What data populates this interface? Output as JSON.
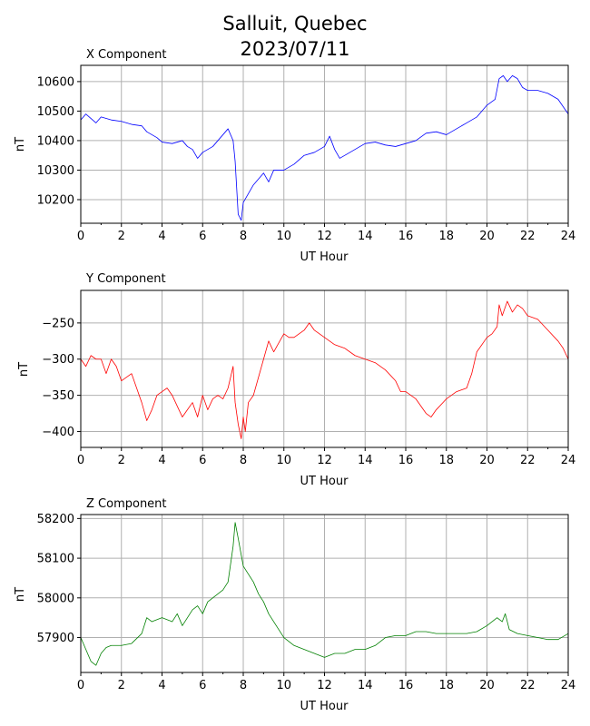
{
  "figure": {
    "title_line1": "Salluit, Quebec",
    "title_line2": "2023/07/11"
  },
  "chart_data": [
    {
      "type": "line",
      "title": "X Component",
      "xlabel": "UT Hour",
      "ylabel": "nT",
      "xlim": [
        0,
        24
      ],
      "ylim": [
        10120,
        10655
      ],
      "xticks": [
        0,
        2,
        4,
        6,
        8,
        10,
        12,
        14,
        16,
        18,
        20,
        22,
        24
      ],
      "yticks": [
        10200,
        10300,
        10400,
        10500,
        10600
      ],
      "ytick_labels": [
        "10200",
        "10300",
        "10400",
        "10500",
        "10600"
      ],
      "grid": true,
      "color": "#0000ff",
      "x": [
        0,
        0.25,
        0.5,
        0.75,
        1,
        1.5,
        2,
        2.5,
        3,
        3.25,
        3.5,
        3.75,
        4,
        4.5,
        5,
        5.25,
        5.5,
        5.75,
        6,
        6.5,
        7,
        7.25,
        7.5,
        7.6,
        7.75,
        7.9,
        8,
        8.25,
        8.5,
        9,
        9.25,
        9.5,
        10,
        10.5,
        11,
        11.5,
        12,
        12.25,
        12.5,
        12.75,
        13,
        13.5,
        14,
        14.5,
        15,
        15.5,
        16,
        16.5,
        17,
        17.5,
        18,
        18.5,
        19,
        19.5,
        20,
        20.4,
        20.6,
        20.8,
        21,
        21.25,
        21.5,
        21.75,
        22,
        22.5,
        23,
        23.5,
        24
      ],
      "y": [
        10470,
        10490,
        10475,
        10460,
        10480,
        10470,
        10465,
        10455,
        10450,
        10430,
        10420,
        10410,
        10395,
        10390,
        10400,
        10380,
        10370,
        10340,
        10360,
        10380,
        10420,
        10440,
        10400,
        10330,
        10150,
        10130,
        10190,
        10220,
        10250,
        10290,
        10260,
        10300,
        10300,
        10320,
        10350,
        10360,
        10380,
        10415,
        10370,
        10340,
        10350,
        10370,
        10390,
        10395,
        10385,
        10380,
        10390,
        10400,
        10425,
        10430,
        10420,
        10440,
        10460,
        10480,
        10520,
        10540,
        10610,
        10620,
        10600,
        10620,
        10610,
        10580,
        10570,
        10570,
        10560,
        10540,
        10490
      ]
    },
    {
      "type": "line",
      "title": "Y Component",
      "xlabel": "UT Hour",
      "ylabel": "nT",
      "xlim": [
        0,
        24
      ],
      "ylim": [
        -422,
        -205
      ],
      "xticks": [
        0,
        2,
        4,
        6,
        8,
        10,
        12,
        14,
        16,
        18,
        20,
        22,
        24
      ],
      "yticks": [
        -250,
        -300,
        -350,
        -400
      ],
      "ytick_labels": [
        "−250",
        "−300",
        "−350",
        "−400"
      ],
      "grid": true,
      "color": "#ff0000",
      "x": [
        0,
        0.25,
        0.5,
        0.75,
        1,
        1.25,
        1.5,
        1.75,
        2,
        2.5,
        2.75,
        3,
        3.25,
        3.5,
        3.75,
        4,
        4.25,
        4.5,
        4.75,
        5,
        5.25,
        5.5,
        5.75,
        6,
        6.25,
        6.5,
        6.75,
        7,
        7.25,
        7.5,
        7.6,
        7.75,
        7.9,
        8,
        8.1,
        8.25,
        8.5,
        9,
        9.25,
        9.5,
        10,
        10.25,
        10.5,
        11,
        11.25,
        11.5,
        12,
        12.5,
        13,
        13.5,
        14,
        14.5,
        15,
        15.5,
        15.75,
        16,
        16.5,
        17,
        17.25,
        17.5,
        18,
        18.5,
        19,
        19.25,
        19.5,
        20,
        20.25,
        20.5,
        20.6,
        20.75,
        21,
        21.25,
        21.5,
        21.75,
        22,
        22.5,
        23,
        23.5,
        23.75,
        24
      ],
      "y": [
        -300,
        -310,
        -295,
        -300,
        -300,
        -320,
        -300,
        -310,
        -330,
        -320,
        -340,
        -360,
        -385,
        -370,
        -350,
        -345,
        -340,
        -350,
        -365,
        -380,
        -370,
        -360,
        -380,
        -350,
        -370,
        -355,
        -350,
        -355,
        -340,
        -310,
        -360,
        -390,
        -410,
        -380,
        -400,
        -360,
        -350,
        -300,
        -275,
        -290,
        -265,
        -270,
        -270,
        -260,
        -250,
        -260,
        -270,
        -280,
        -285,
        -295,
        -300,
        -305,
        -315,
        -330,
        -345,
        -345,
        -355,
        -375,
        -380,
        -370,
        -355,
        -345,
        -340,
        -320,
        -290,
        -270,
        -265,
        -255,
        -225,
        -240,
        -220,
        -235,
        -225,
        -230,
        -240,
        -245,
        -260,
        -275,
        -285,
        -300
      ]
    },
    {
      "type": "line",
      "title": "Z Component",
      "xlabel": "UT Hour",
      "ylabel": "nT",
      "xlim": [
        0,
        24
      ],
      "ylim": [
        57812,
        58210
      ],
      "xticks": [
        0,
        2,
        4,
        6,
        8,
        10,
        12,
        14,
        16,
        18,
        20,
        22,
        24
      ],
      "yticks": [
        57900,
        58000,
        58100,
        58200
      ],
      "ytick_labels": [
        "57900",
        "58000",
        "58100",
        "58200"
      ],
      "grid": true,
      "color": "#008000",
      "x": [
        0,
        0.25,
        0.5,
        0.75,
        1,
        1.25,
        1.5,
        2,
        2.5,
        3,
        3.25,
        3.5,
        4,
        4.5,
        4.75,
        5,
        5.25,
        5.5,
        5.75,
        6,
        6.25,
        6.5,
        6.75,
        7,
        7.25,
        7.5,
        7.6,
        7.75,
        8,
        8.25,
        8.5,
        8.75,
        9,
        9.25,
        9.5,
        10,
        10.5,
        11,
        11.5,
        12,
        12.5,
        13,
        13.5,
        14,
        14.5,
        15,
        15.5,
        16,
        16.5,
        17,
        17.5,
        18,
        18.5,
        19,
        19.5,
        20,
        20.25,
        20.5,
        20.75,
        20.9,
        21.1,
        21.5,
        22,
        22.5,
        23,
        23.5,
        24
      ],
      "y": [
        57900,
        57870,
        57840,
        57830,
        57860,
        57875,
        57880,
        57880,
        57885,
        57910,
        57950,
        57940,
        57950,
        57940,
        57960,
        57930,
        57950,
        57970,
        57980,
        57960,
        57990,
        58000,
        58010,
        58020,
        58040,
        58130,
        58190,
        58150,
        58080,
        58060,
        58040,
        58010,
        57990,
        57960,
        57940,
        57900,
        57880,
        57870,
        57860,
        57850,
        57860,
        57860,
        57870,
        57870,
        57880,
        57900,
        57905,
        57905,
        57915,
        57915,
        57910,
        57910,
        57910,
        57910,
        57915,
        57930,
        57940,
        57950,
        57940,
        57960,
        57920,
        57910,
        57905,
        57900,
        57895,
        57895,
        57910
      ]
    }
  ]
}
